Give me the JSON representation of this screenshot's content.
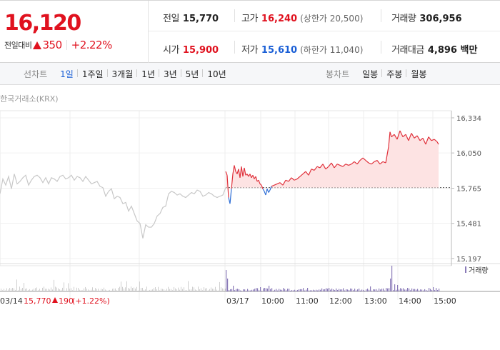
{
  "price": {
    "current": "16,120",
    "change_label": "전일대비",
    "change_amount": "350",
    "change_percent": "+2.22%"
  },
  "stats": {
    "prev_close": {
      "label": "전일",
      "value": "15,770"
    },
    "high": {
      "label": "고가",
      "value": "16,240",
      "note": "(상한가 20,500)"
    },
    "volume": {
      "label": "거래량",
      "value": "306,956"
    },
    "open": {
      "label": "시가",
      "value": "15,900"
    },
    "low": {
      "label": "저가",
      "value": "15,610",
      "note": "(하한가 11,040)"
    },
    "trade_value": {
      "label": "거래대금",
      "value": "4,896 백만"
    }
  },
  "tabs": {
    "line_label": "선차트",
    "line_periods": [
      "1일",
      "1주일",
      "3개월",
      "1년",
      "3년",
      "5년",
      "10년"
    ],
    "line_active": "1일",
    "candle_label": "봉차트",
    "candle_periods": [
      "일봉",
      "주봉",
      "월봉"
    ]
  },
  "chart_data": {
    "type": "line",
    "source_label": "한국거래소(KRX)",
    "y_ticks": [
      15197,
      15481,
      15765,
      16050,
      16334
    ],
    "y_tick_labels": [
      "15,197",
      "15,481",
      "15,765",
      "16,050",
      "16,334"
    ],
    "ylim": [
      15150,
      16380
    ],
    "baseline": 15770,
    "x_tick_labels": [
      "03/17",
      "10:00",
      "11:00",
      "12:00",
      "13:00",
      "14:00",
      "15:00"
    ],
    "prev_day_label": "03/14",
    "prev_day_summary": {
      "close": "15,770",
      "change": "190",
      "percent": "(+1.22%)"
    },
    "volume_legend": "거래량",
    "prev_series": {
      "name": "03/14",
      "x": [
        0,
        4,
        8,
        12,
        16,
        20,
        24,
        28,
        32,
        36,
        40,
        44,
        48,
        52,
        56,
        60,
        64,
        68,
        72,
        76,
        80,
        84,
        88,
        92,
        96,
        100,
        104,
        108,
        112,
        116,
        120,
        124,
        128,
        132,
        136,
        140,
        144,
        148,
        152,
        156,
        160,
        164,
        168,
        172,
        176,
        180,
        184,
        188,
        192,
        196,
        200,
        204,
        208,
        212,
        216,
        220,
        224,
        228,
        232,
        236,
        240,
        244,
        248,
        252,
        256,
        260,
        264,
        268,
        272,
        276,
        280,
        284,
        288,
        292,
        296,
        300,
        304,
        308,
        312,
        316
      ],
      "y": [
        15720,
        15840,
        15790,
        15860,
        15760,
        15880,
        15800,
        15820,
        15850,
        15870,
        15790,
        15830,
        15860,
        15870,
        15850,
        15810,
        15850,
        15800,
        15850,
        15840,
        15820,
        15860,
        15870,
        15840,
        15850,
        15870,
        15830,
        15860,
        15850,
        15820,
        15860,
        15830,
        15800,
        15810,
        15820,
        15780,
        15770,
        15700,
        15740,
        15760,
        15680,
        15700,
        15690,
        15640,
        15650,
        15580,
        15620,
        15560,
        15500,
        15480,
        15360,
        15470,
        15450,
        15450,
        15480,
        15540,
        15560,
        15610,
        15620,
        15720,
        15740,
        15730,
        15710,
        15720,
        15700,
        15690,
        15710,
        15730,
        15720,
        15750,
        15740,
        15700,
        15710,
        15730,
        15720,
        15700,
        15690,
        15700,
        15710,
        15770
      ]
    },
    "today_series": {
      "name": "03/17",
      "x": [
        316,
        318,
        320,
        322,
        324,
        326,
        328,
        330,
        332,
        334,
        336,
        338,
        340,
        342,
        344,
        346,
        348,
        350,
        352,
        354,
        356,
        358,
        360,
        362,
        364,
        366,
        368,
        370,
        372,
        374,
        376,
        378,
        380,
        384,
        388,
        392,
        396,
        400,
        404,
        408,
        412,
        416,
        420,
        424,
        428,
        432,
        436,
        440,
        444,
        448,
        452,
        456,
        460,
        464,
        468,
        472,
        476,
        480,
        484,
        488,
        492,
        496,
        500,
        504,
        508,
        512,
        516,
        520,
        524,
        528,
        532,
        536,
        540,
        544,
        546,
        548,
        552,
        556,
        560,
        564,
        568,
        572,
        576,
        580,
        584,
        588,
        592,
        596,
        600,
        604,
        608,
        612,
        614
      ],
      "y": [
        15900,
        15870,
        15690,
        15640,
        15760,
        15880,
        15950,
        15900,
        15880,
        15920,
        15850,
        15940,
        15860,
        15930,
        15870,
        15880,
        15860,
        15880,
        15850,
        15870,
        15840,
        15860,
        15820,
        15830,
        15800,
        15790,
        15760,
        15740,
        15710,
        15760,
        15730,
        15750,
        15780,
        15790,
        15800,
        15810,
        15790,
        15830,
        15820,
        15850,
        15830,
        15840,
        15860,
        15880,
        15900,
        15870,
        15920,
        15910,
        15940,
        15930,
        15960,
        15920,
        15940,
        15970,
        15930,
        15960,
        15950,
        15940,
        15960,
        15950,
        15960,
        15980,
        15960,
        15990,
        16010,
        15990,
        15970,
        15960,
        15980,
        15990,
        15960,
        15980,
        15970,
        16100,
        16220,
        16180,
        16200,
        16160,
        16230,
        16180,
        16200,
        16150,
        16210,
        16170,
        16190,
        16150,
        16170,
        16120,
        16180,
        16150,
        16160,
        16140,
        16120
      ]
    }
  }
}
